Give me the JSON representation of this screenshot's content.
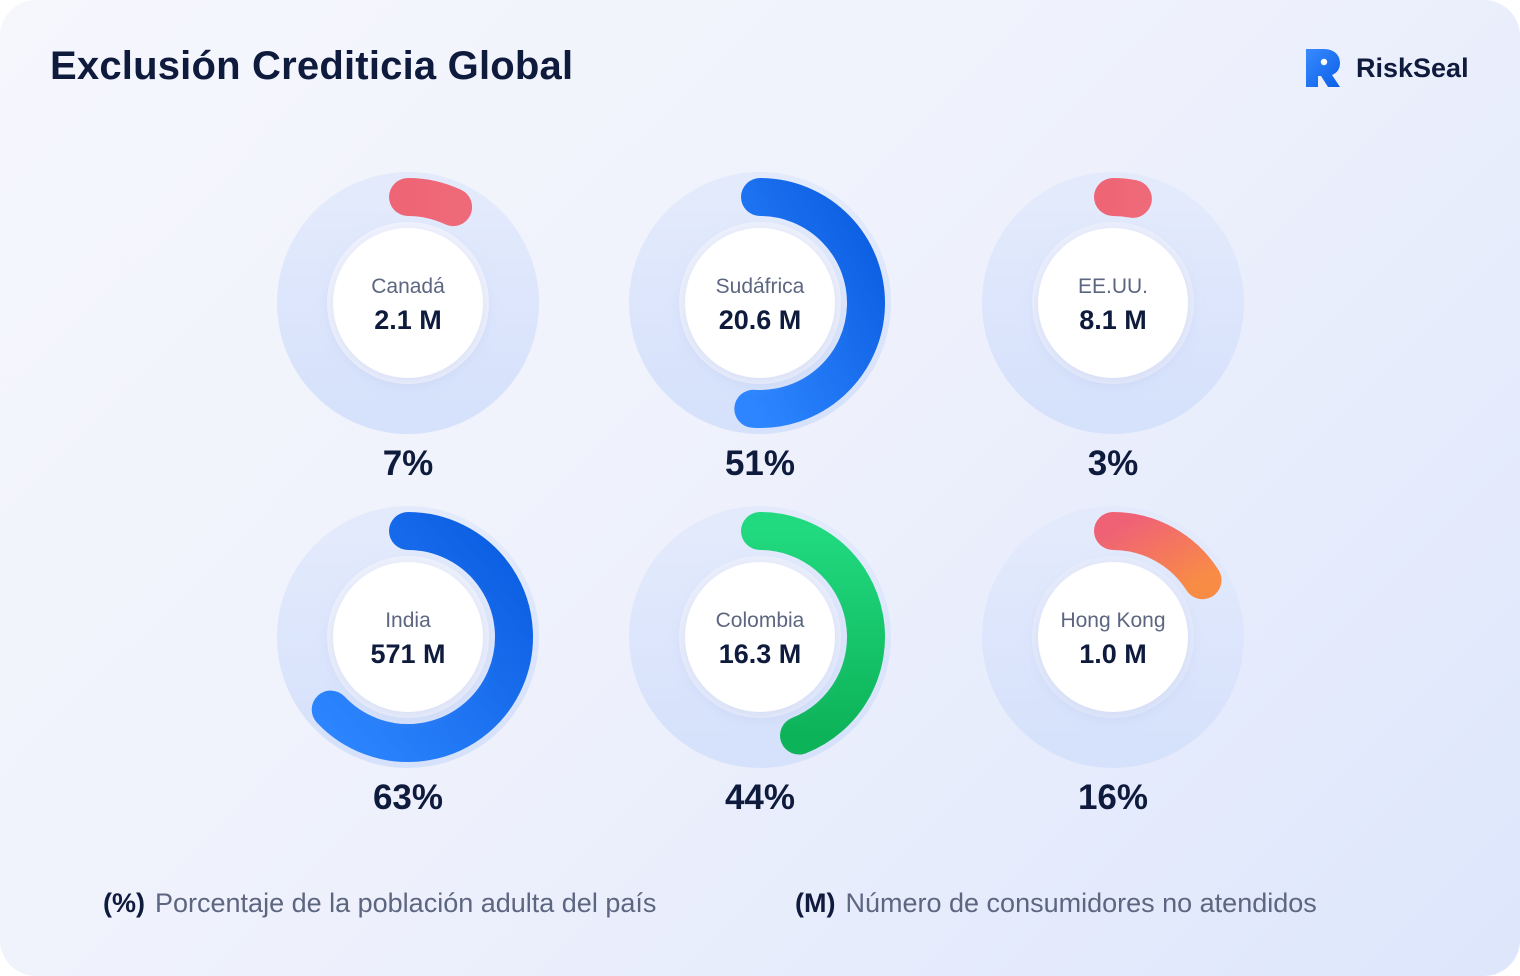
{
  "header": {
    "title": "Exclusión Crediticia Global",
    "brand": "RiskSeal"
  },
  "legend": {
    "percent_symbol": "(%)",
    "percent_text": "Porcentaje de la población adulta del país",
    "millions_symbol": "(M)",
    "millions_text": "Número de consumidores no atendidos"
  },
  "colors": {
    "track": "#dde6fc",
    "red": "#ee6576",
    "blue": "#0a62e8",
    "green": "#15c265",
    "orange": "#f58a4b",
    "text_dark": "#0f1b3d",
    "text_muted": "#5d6680"
  },
  "chart_data": {
    "type": "pie",
    "variant": "donut-grid",
    "items": [
      {
        "country": "Canadá",
        "value_label": "2.1 M",
        "percent": 7,
        "percent_label": "7%",
        "color": "red"
      },
      {
        "country": "Sudáfrica",
        "value_label": "20.6 M",
        "percent": 51,
        "percent_label": "51%",
        "color": "blue"
      },
      {
        "country": "EE.UU.",
        "value_label": "8.1 M",
        "percent": 3,
        "percent_label": "3%",
        "color": "red"
      },
      {
        "country": "India",
        "value_label": "571 M",
        "percent": 63,
        "percent_label": "63%",
        "color": "blue"
      },
      {
        "country": "Colombia",
        "value_label": "16.3 M",
        "percent": 44,
        "percent_label": "44%",
        "color": "green"
      },
      {
        "country": "Hong Kong",
        "value_label": "1.0 M",
        "percent": 16,
        "percent_label": "16%",
        "color": "red-orange"
      }
    ]
  }
}
